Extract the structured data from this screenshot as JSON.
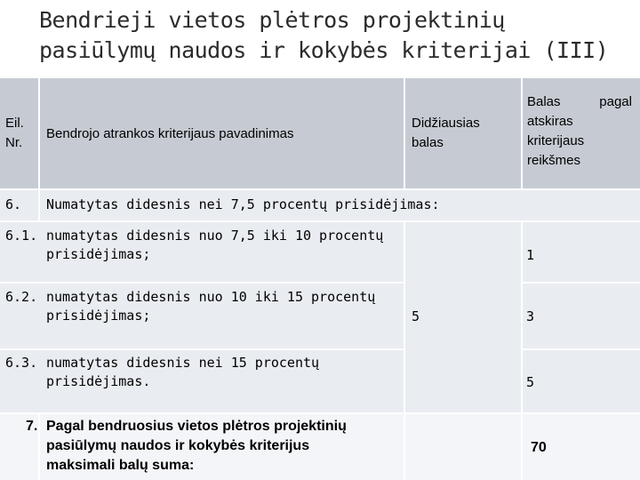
{
  "title": {
    "line1": "Bendrieji vietos plėtros projektinių",
    "line2": "pasiūlymų naudos ir kokybės kriterijai (III)"
  },
  "header": {
    "nr_line1": "Eil.",
    "nr_line2": "Nr.",
    "name": "Bendrojo atrankos kriterijaus pavadinimas",
    "max_line1": "Didžiausias",
    "max_line2": "balas",
    "score_line1": "Balas pagal",
    "score_line2": "atskiras",
    "score_line3": "kriterijaus",
    "score_line4": "reikšmes"
  },
  "row6": {
    "nr": "6.",
    "text": "Numatytas didesnis nei 7,5 procentų prisidėjimas:"
  },
  "sub": [
    {
      "nr": "6.1.",
      "line1": "numatytas didesnis nuo 7,5 iki 10 procentų",
      "line2": "prisidėjimas;",
      "score": "1"
    },
    {
      "nr": "6.2.",
      "line1": "numatytas didesnis nuo 10 iki 15 procentų",
      "line2": "prisidėjimas;",
      "score": "3"
    },
    {
      "nr": "6.3.",
      "line1": "numatytas didesnis nei 15 procentų",
      "line2": "prisidėjimas.",
      "score": "5"
    }
  ],
  "max_score": "5",
  "row7": {
    "nr": "7.",
    "line1": "Pagal bendruosius vietos plėtros projektinių",
    "line2": "pasiūlymų naudos ir kokybės kriterijus",
    "line3": "maksimali balų suma:",
    "total": "70"
  }
}
